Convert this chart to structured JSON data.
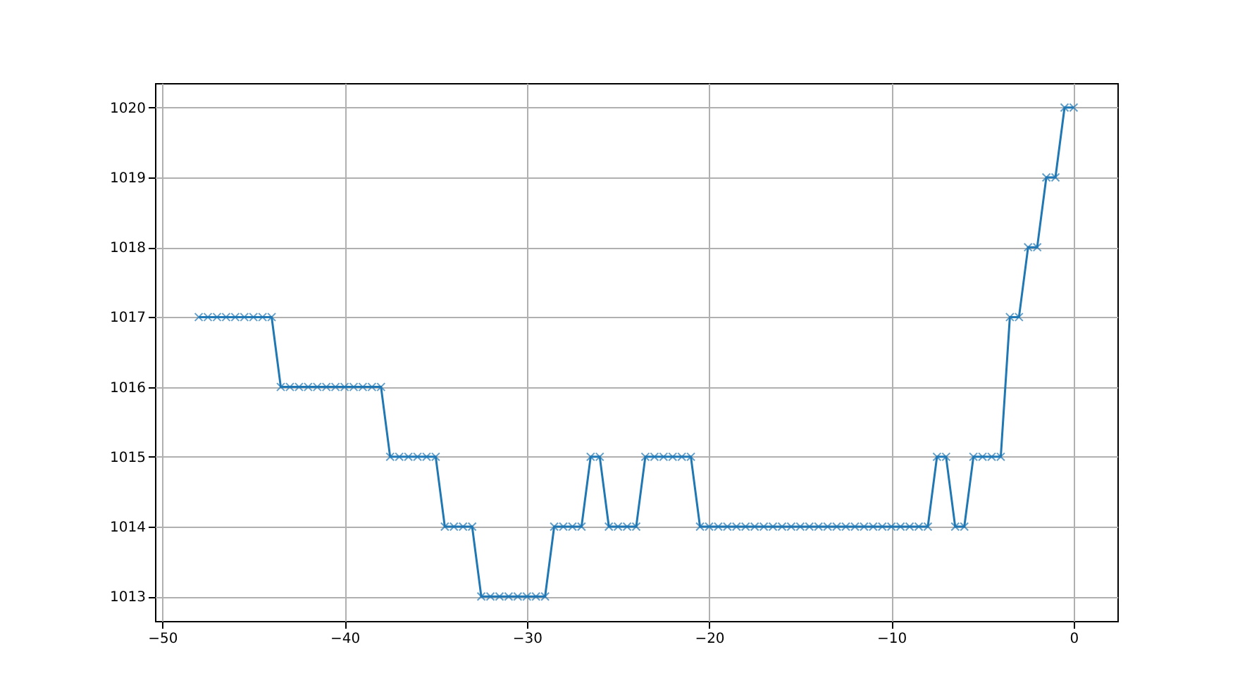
{
  "chart_data": {
    "type": "line",
    "marker": "cross",
    "grid": true,
    "xlim": [
      -50.4,
      2.4
    ],
    "xticks": [
      -50,
      -40,
      -30,
      -20,
      -10,
      0
    ],
    "ylim": [
      1012.65,
      1020.35
    ],
    "yticks": [
      1013,
      1014,
      1015,
      1016,
      1017,
      1018,
      1019,
      1020
    ],
    "x": [
      -48,
      -47.5,
      -47,
      -46.5,
      -46,
      -45.5,
      -45,
      -44.5,
      -44,
      -43.5,
      -43,
      -42.5,
      -42,
      -41.5,
      -41,
      -40.5,
      -40,
      -39.5,
      -39,
      -38.5,
      -38,
      -37.5,
      -37,
      -36.5,
      -36,
      -35.5,
      -35,
      -34.5,
      -34,
      -33.5,
      -33,
      -32.5,
      -32,
      -31.5,
      -31,
      -30.5,
      -30,
      -29.5,
      -29,
      -28.5,
      -28,
      -27.5,
      -27,
      -26.5,
      -26,
      -25.5,
      -25,
      -24.5,
      -24,
      -23.5,
      -23,
      -22.5,
      -22,
      -21.5,
      -21,
      -20.5,
      -20,
      -19.5,
      -19,
      -18.5,
      -18,
      -17.5,
      -17,
      -16.5,
      -16,
      -15.5,
      -15,
      -14.5,
      -14,
      -13.5,
      -13,
      -12.5,
      -12,
      -11.5,
      -11,
      -10.5,
      -10,
      -9.5,
      -9,
      -8.5,
      -8,
      -7.5,
      -7,
      -6.5,
      -6,
      -5.5,
      -5,
      -4.5,
      -4,
      -3.5,
      -3,
      -2.5,
      -2,
      -1.5,
      -1,
      -0.5,
      0
    ],
    "series": [
      {
        "color": "#1f77b4",
        "values": [
          1017,
          1017,
          1017,
          1017,
          1017,
          1017,
          1017,
          1017,
          1017,
          1016,
          1016,
          1016,
          1016,
          1016,
          1016,
          1016,
          1016,
          1016,
          1016,
          1016,
          1016,
          1015,
          1015,
          1015,
          1015,
          1015,
          1015,
          1014,
          1014,
          1014,
          1014,
          1013,
          1013,
          1013,
          1013,
          1013,
          1013,
          1013,
          1013,
          1014,
          1014,
          1014,
          1014,
          1015,
          1015,
          1014,
          1014,
          1014,
          1014,
          1015,
          1015,
          1015,
          1015,
          1015,
          1015,
          1014,
          1014,
          1014,
          1014,
          1014,
          1014,
          1014,
          1014,
          1014,
          1014,
          1014,
          1014,
          1014,
          1014,
          1014,
          1014,
          1014,
          1014,
          1014,
          1014,
          1014,
          1014,
          1014,
          1014,
          1014,
          1014,
          1015,
          1015,
          1014,
          1014,
          1015,
          1015,
          1015,
          1015,
          1017,
          1017,
          1018,
          1018,
          1019,
          1019,
          1020,
          1020
        ]
      }
    ]
  }
}
